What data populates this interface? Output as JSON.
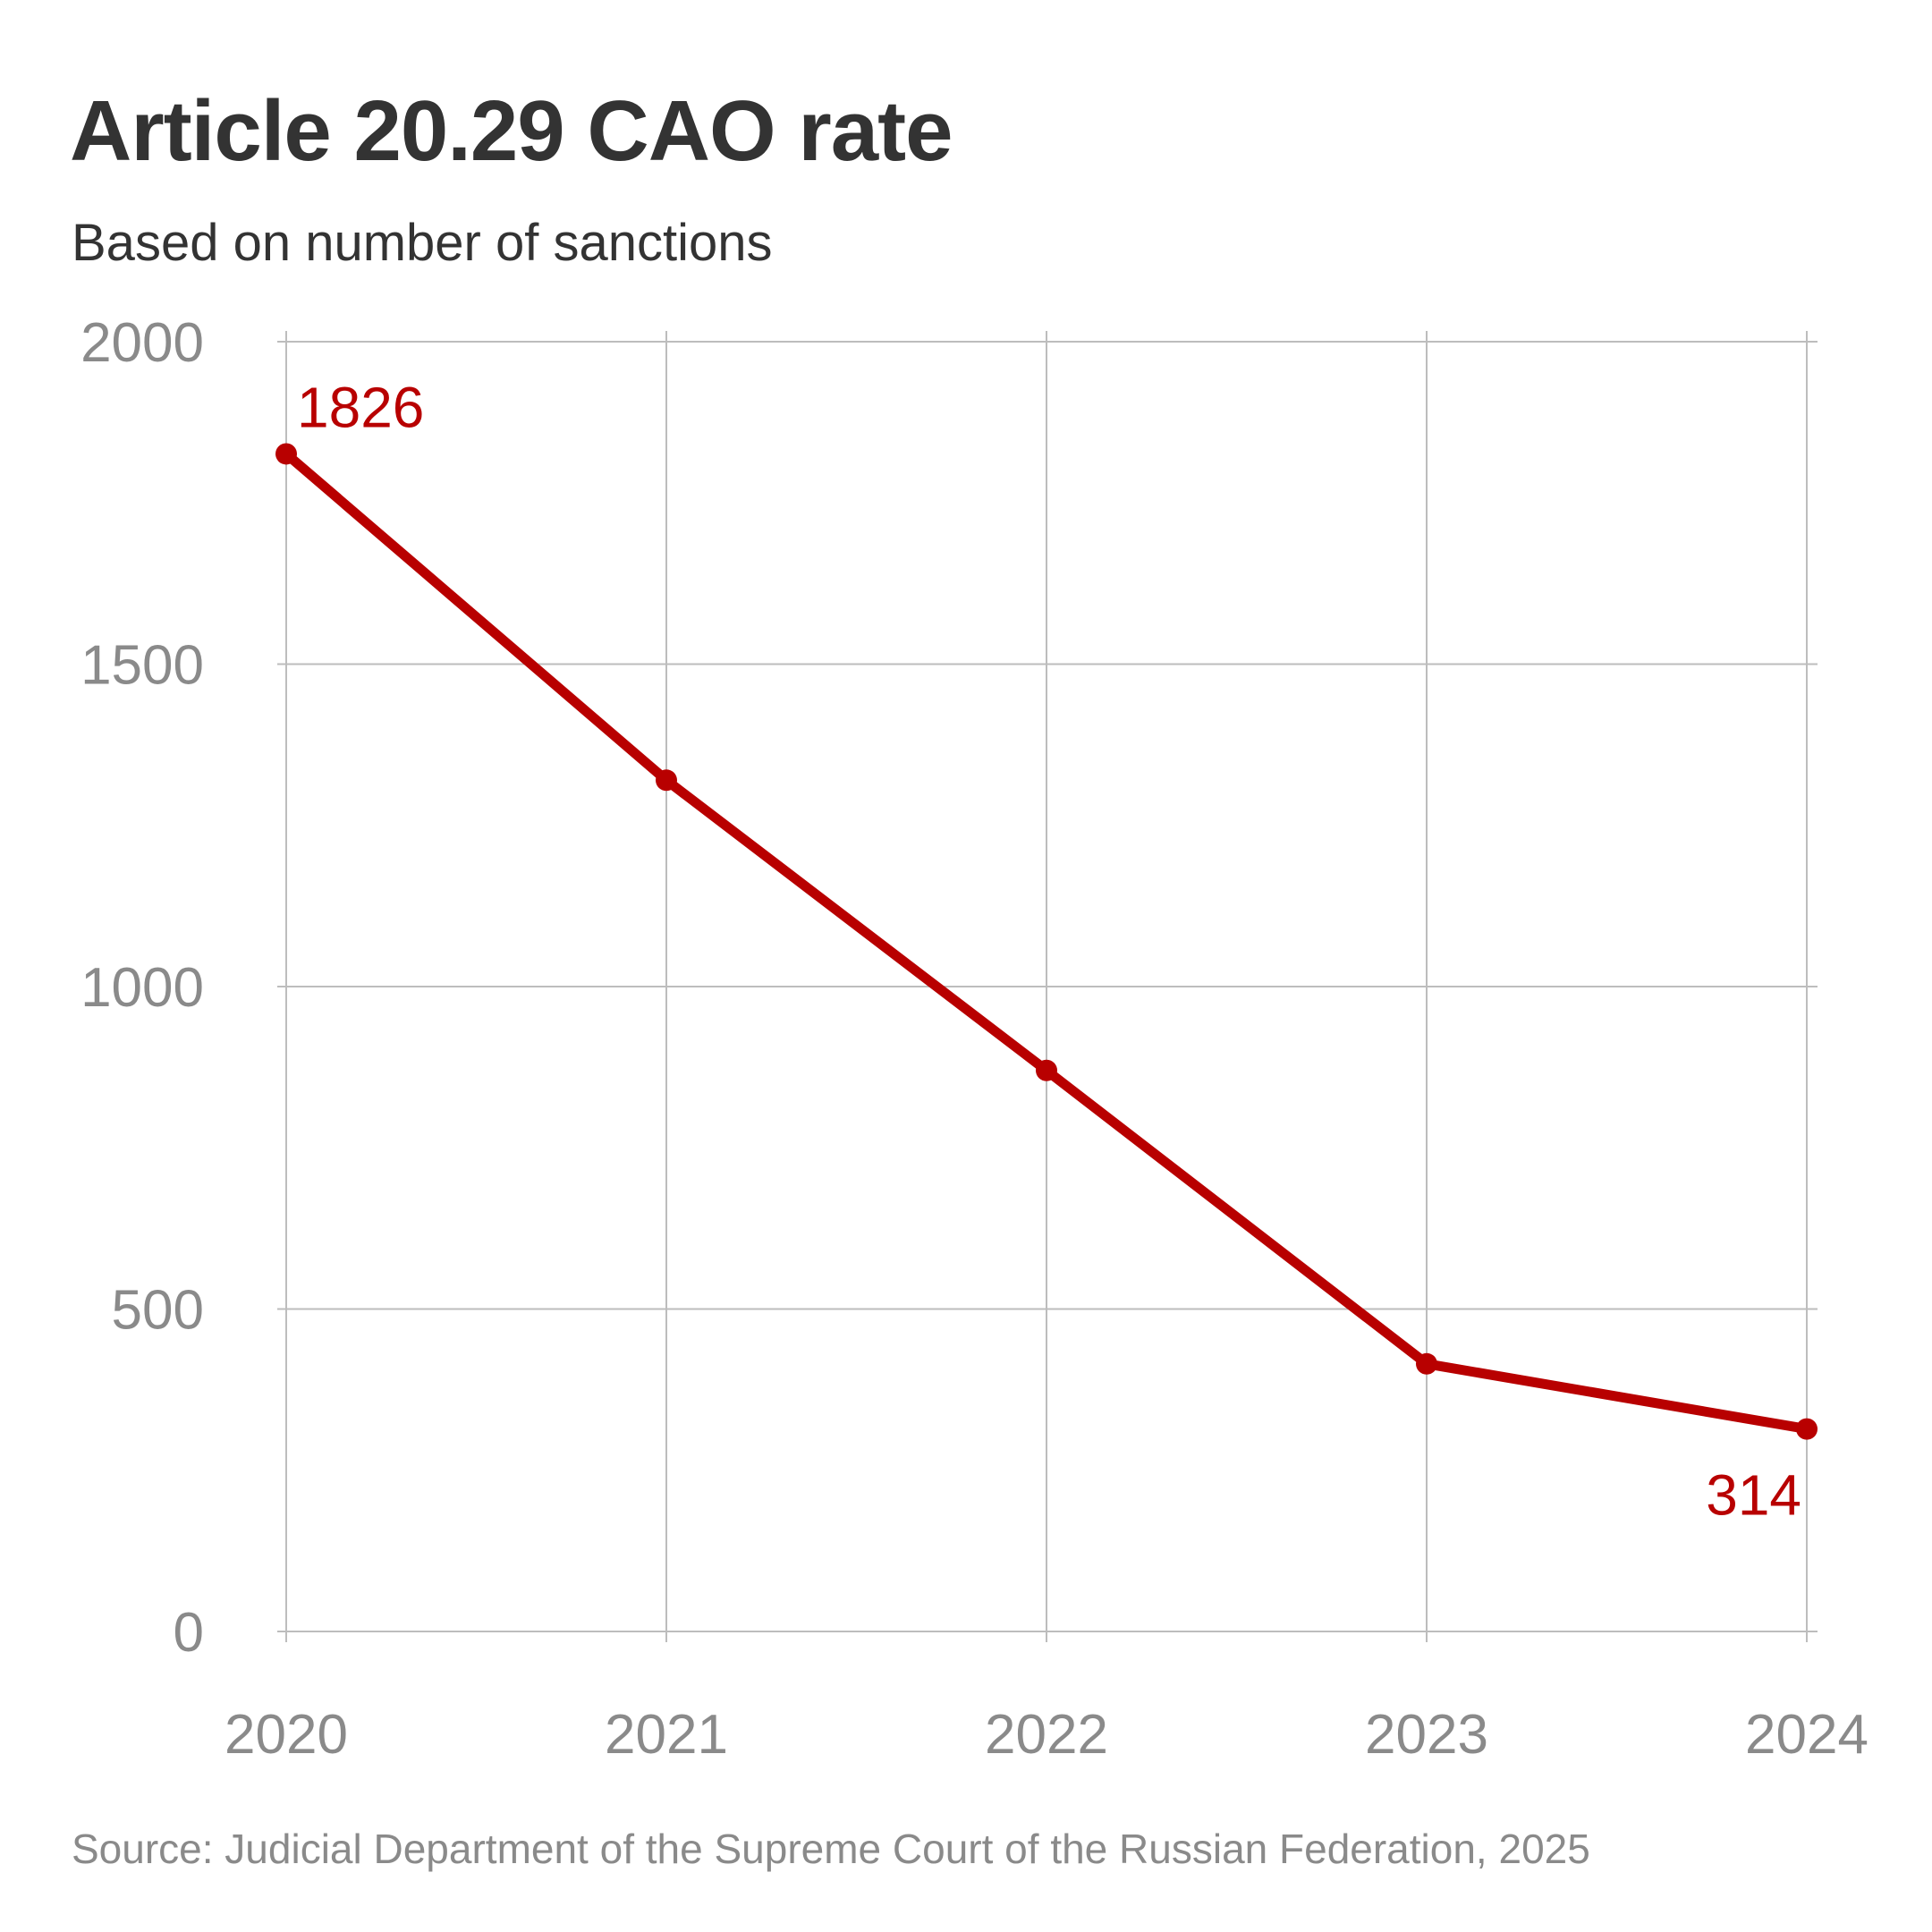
{
  "title": "Article 20.29 CAO rate",
  "subtitle": "Based on number of sanctions",
  "source": "Source: Judicial Department of the Supreme Court of the Russian Federation, 2025",
  "colors": {
    "line": "#b80000",
    "grid": "#bdbdbd",
    "tick": "#8a8a8a",
    "title": "#333333"
  },
  "chart_data": {
    "type": "line",
    "title": "Article 20.29 CAO rate",
    "subtitle": "Based on number of sanctions",
    "categories": [
      "2020",
      "2021",
      "2022",
      "2023",
      "2024"
    ],
    "series": [
      {
        "values": [
          1826,
          1320,
          870,
          415,
          314
        ]
      }
    ],
    "data_labels": [
      {
        "index": 0,
        "text": "1826",
        "position": "above-right"
      },
      {
        "index": 4,
        "text": "314",
        "position": "below-left"
      }
    ],
    "ylim": [
      0,
      2000
    ],
    "yticks": [
      "0",
      "500",
      "1000",
      "1500",
      "2000"
    ],
    "ytick_values": [
      0,
      500,
      1000,
      1500,
      2000
    ],
    "grid": true,
    "xlabel": "",
    "ylabel": ""
  }
}
